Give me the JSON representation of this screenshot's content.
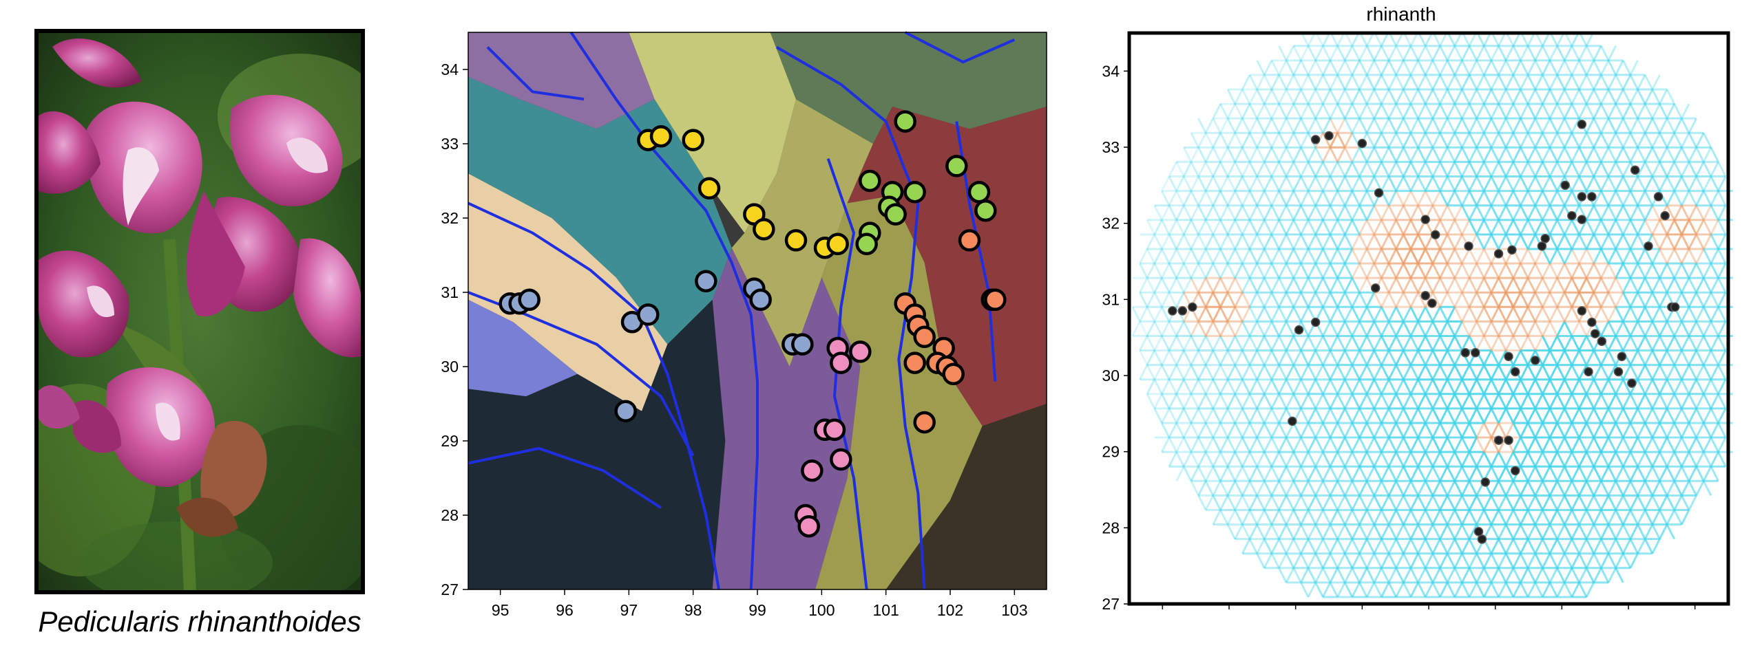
{
  "figure": {
    "caption": "Pedicularis rhinanthoides",
    "right_title": "rhinanth"
  },
  "colors": {
    "yellow": "#f7d51c",
    "green": "#96d552",
    "orange": "#f58b5c",
    "pink": "#ef8fc0",
    "blue": "#8ea5cf",
    "cyan_edge": "#3ed3ea",
    "orange_edge": "#eb9a63"
  },
  "chart_data": [
    {
      "type": "scatter",
      "title": "",
      "xlabel": "",
      "ylabel": "",
      "xlim": [
        94.5,
        103.5
      ],
      "ylim": [
        27,
        34.5
      ],
      "xticks": [
        "95",
        "96",
        "97",
        "98",
        "99",
        "100",
        "101",
        "102",
        "103"
      ],
      "yticks": [
        "27",
        "28",
        "29",
        "30",
        "31",
        "32",
        "33",
        "34"
      ],
      "background": "shaded relief map with colored river basins and blue river network",
      "series": [
        {
          "group": "yellow",
          "points": [
            [
              97.3,
              33.05
            ],
            [
              97.5,
              33.1
            ],
            [
              98.0,
              33.05
            ],
            [
              98.25,
              32.4
            ],
            [
              98.95,
              32.05
            ],
            [
              99.1,
              31.85
            ],
            [
              99.6,
              31.7
            ],
            [
              100.05,
              31.6
            ],
            [
              100.25,
              31.65
            ]
          ]
        },
        {
          "group": "green",
          "points": [
            [
              101.3,
              33.3
            ],
            [
              102.1,
              32.7
            ],
            [
              100.75,
              32.5
            ],
            [
              101.1,
              32.35
            ],
            [
              101.45,
              32.35
            ],
            [
              102.45,
              32.35
            ],
            [
              102.55,
              32.1
            ],
            [
              101.05,
              32.15
            ],
            [
              101.15,
              32.05
            ],
            [
              100.75,
              31.8
            ],
            [
              100.7,
              31.65
            ]
          ]
        },
        {
          "group": "orange",
          "points": [
            [
              102.3,
              31.7
            ],
            [
              101.3,
              30.85
            ],
            [
              101.45,
              30.7
            ],
            [
              101.5,
              30.55
            ],
            [
              101.6,
              30.4
            ],
            [
              101.9,
              30.25
            ],
            [
              101.8,
              30.05
            ],
            [
              101.95,
              30.0
            ],
            [
              102.05,
              29.9
            ],
            [
              101.45,
              30.05
            ],
            [
              101.6,
              29.25
            ],
            [
              102.65,
              30.9
            ],
            [
              102.7,
              30.9
            ]
          ]
        },
        {
          "group": "pink",
          "points": [
            [
              100.25,
              30.25
            ],
            [
              100.3,
              30.05
            ],
            [
              100.6,
              30.2
            ],
            [
              100.05,
              29.15
            ],
            [
              100.2,
              29.15
            ],
            [
              100.3,
              28.75
            ],
            [
              99.85,
              28.6
            ],
            [
              99.75,
              28.0
            ],
            [
              99.8,
              27.85
            ]
          ]
        },
        {
          "group": "blue",
          "points": [
            [
              95.15,
              30.85
            ],
            [
              95.3,
              30.85
            ],
            [
              95.45,
              30.9
            ],
            [
              97.05,
              30.6
            ],
            [
              97.3,
              30.7
            ],
            [
              98.2,
              31.15
            ],
            [
              98.95,
              31.05
            ],
            [
              99.05,
              30.9
            ],
            [
              99.55,
              30.3
            ],
            [
              99.7,
              30.3
            ],
            [
              96.95,
              29.4
            ]
          ]
        }
      ]
    },
    {
      "type": "scatter",
      "title": "rhinanth",
      "xlabel": "",
      "ylabel": "",
      "xlim": [
        94.5,
        103.5
      ],
      "ylim": [
        27,
        34.5
      ],
      "xticks": [
        "95",
        "96",
        "97",
        "98",
        "99",
        "100",
        "101",
        "102",
        "103"
      ],
      "yticks": [
        "27",
        "28",
        "29",
        "30",
        "31",
        "32",
        "33",
        "34"
      ],
      "background": "triangular edge grid colored cyan (low) to orange (high) within sampled region",
      "points": [
        [
          95.15,
          30.85
        ],
        [
          95.3,
          30.85
        ],
        [
          95.45,
          30.9
        ],
        [
          97.05,
          30.6
        ],
        [
          97.3,
          30.7
        ],
        [
          96.95,
          29.4
        ],
        [
          97.3,
          33.1
        ],
        [
          97.5,
          33.15
        ],
        [
          98.0,
          33.05
        ],
        [
          98.25,
          32.4
        ],
        [
          98.2,
          31.15
        ],
        [
          98.95,
          32.05
        ],
        [
          99.1,
          31.85
        ],
        [
          98.95,
          31.05
        ],
        [
          99.05,
          30.95
        ],
        [
          99.6,
          31.7
        ],
        [
          99.55,
          30.3
        ],
        [
          99.7,
          30.3
        ],
        [
          100.05,
          31.6
        ],
        [
          100.25,
          31.65
        ],
        [
          100.2,
          30.25
        ],
        [
          100.3,
          30.05
        ],
        [
          100.6,
          30.2
        ],
        [
          100.05,
          29.15
        ],
        [
          100.2,
          29.15
        ],
        [
          100.3,
          28.75
        ],
        [
          99.85,
          28.6
        ],
        [
          99.75,
          27.95
        ],
        [
          99.8,
          27.85
        ],
        [
          100.7,
          31.7
        ],
        [
          100.75,
          31.8
        ],
        [
          101.3,
          33.3
        ],
        [
          101.05,
          32.5
        ],
        [
          101.3,
          32.35
        ],
        [
          101.45,
          32.35
        ],
        [
          101.15,
          32.1
        ],
        [
          101.3,
          32.05
        ],
        [
          102.1,
          32.7
        ],
        [
          102.45,
          32.35
        ],
        [
          102.55,
          32.1
        ],
        [
          102.3,
          31.7
        ],
        [
          101.3,
          30.85
        ],
        [
          101.45,
          30.7
        ],
        [
          101.5,
          30.55
        ],
        [
          101.6,
          30.45
        ],
        [
          101.9,
          30.25
        ],
        [
          101.85,
          30.05
        ],
        [
          101.4,
          30.05
        ],
        [
          102.05,
          29.9
        ],
        [
          102.65,
          30.9
        ],
        [
          102.7,
          30.9
        ]
      ]
    }
  ]
}
